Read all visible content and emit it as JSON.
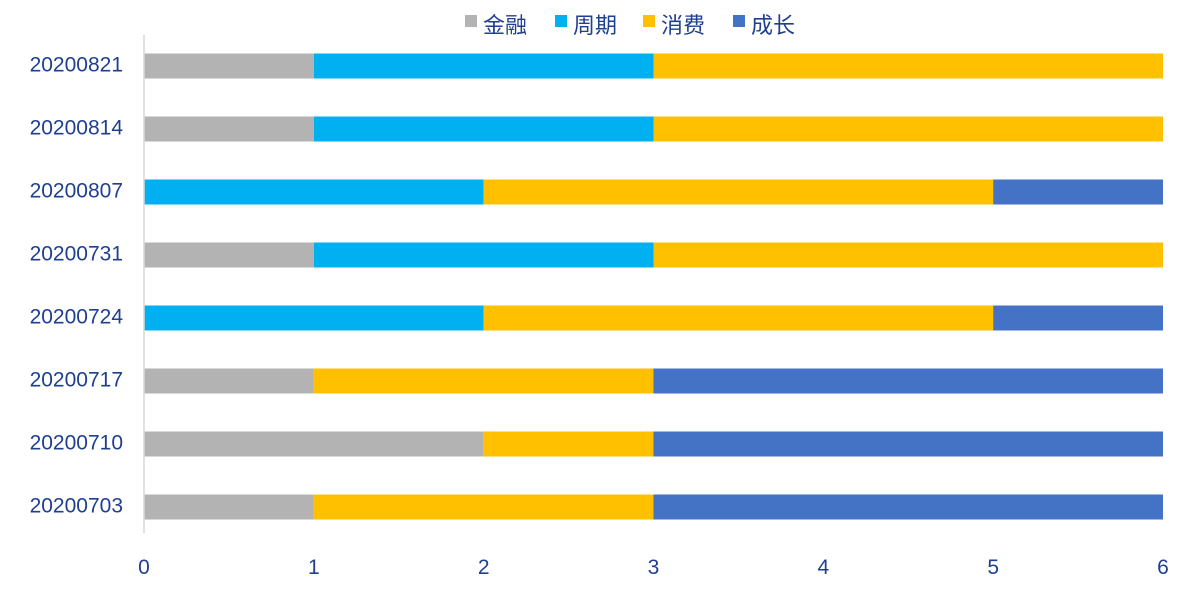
{
  "chart_data": {
    "type": "bar",
    "orientation": "horizontal",
    "stacked": true,
    "title": "",
    "xlabel": "",
    "ylabel": "",
    "categories": [
      "20200821",
      "20200814",
      "20200807",
      "20200731",
      "20200724",
      "20200717",
      "20200710",
      "20200703"
    ],
    "series": [
      {
        "name": "金融",
        "color": "#b3b3b3",
        "values": [
          1,
          1,
          0,
          1,
          0,
          1,
          2,
          1
        ]
      },
      {
        "name": "周期",
        "color": "#00b0f0",
        "values": [
          2,
          2,
          2,
          2,
          2,
          0,
          0,
          0
        ]
      },
      {
        "name": "消费",
        "color": "#ffc000",
        "values": [
          3,
          3,
          3,
          3,
          3,
          2,
          1,
          2
        ]
      },
      {
        "name": "成长",
        "color": "#4472c4",
        "values": [
          0,
          0,
          1,
          0,
          1,
          3,
          3,
          3
        ]
      }
    ],
    "xlim": [
      0,
      6
    ],
    "xticks": [
      "0",
      "1",
      "2",
      "3",
      "4",
      "5",
      "6"
    ],
    "grid": false,
    "legend_position": "top"
  }
}
